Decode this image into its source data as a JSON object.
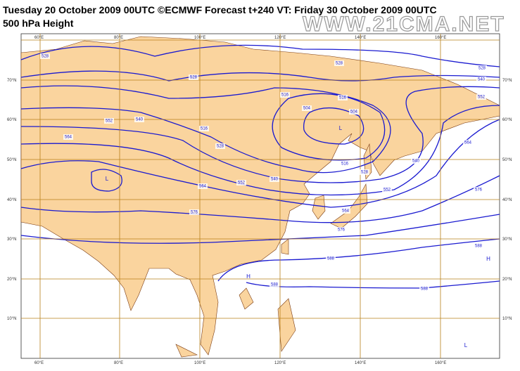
{
  "header": {
    "title": "Tuesday 20 October 2009 00UTC ©ECMWF Forecast t+240 VT: Friday 30 October 2009 00UTC",
    "subtitle": "500 hPa Height",
    "watermark": "WWW.21CMA.NET"
  },
  "map": {
    "longitude_labels": [
      "60°E",
      "80°E",
      "100°E",
      "120°E",
      "140°E",
      "160°E"
    ],
    "latitude_labels": [
      "70°N",
      "60°N",
      "50°N",
      "40°N",
      "30°N",
      "20°N",
      "10°N"
    ],
    "contour_labels": [
      "528",
      "528",
      "528",
      "528",
      "540",
      "552",
      "516",
      "516",
      "504",
      "504",
      "540",
      "552",
      "516",
      "528",
      "564",
      "516",
      "528",
      "540",
      "552",
      "564",
      "552",
      "540",
      "564",
      "576",
      "576",
      "564",
      "576",
      "588",
      "588",
      "588",
      "588"
    ],
    "centers": [
      "L",
      "L",
      "L",
      "H",
      "H"
    ]
  }
}
